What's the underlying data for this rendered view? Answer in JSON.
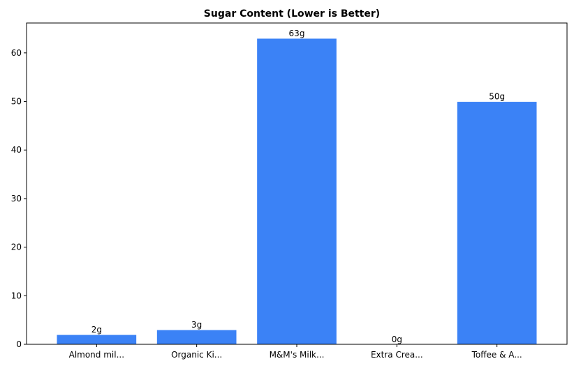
{
  "chart_data": {
    "type": "bar",
    "title": "Sugar Content (Lower is Better)",
    "xlabel": "",
    "ylabel": "",
    "categories": [
      "Almond mil...",
      "Organic Ki...",
      "M&M's Milk...",
      "Extra Crea...",
      "Toffee & A..."
    ],
    "values": [
      2,
      3,
      63,
      0,
      50
    ],
    "value_labels": [
      "2g",
      "3g",
      "63g",
      "0g",
      "50g"
    ],
    "yticks": [
      0,
      10,
      20,
      30,
      40,
      50,
      60
    ],
    "ylim": [
      0,
      66.15
    ],
    "grid": false,
    "bar_color": "#3b82f6",
    "bar_edge_color": "#ffffff"
  }
}
